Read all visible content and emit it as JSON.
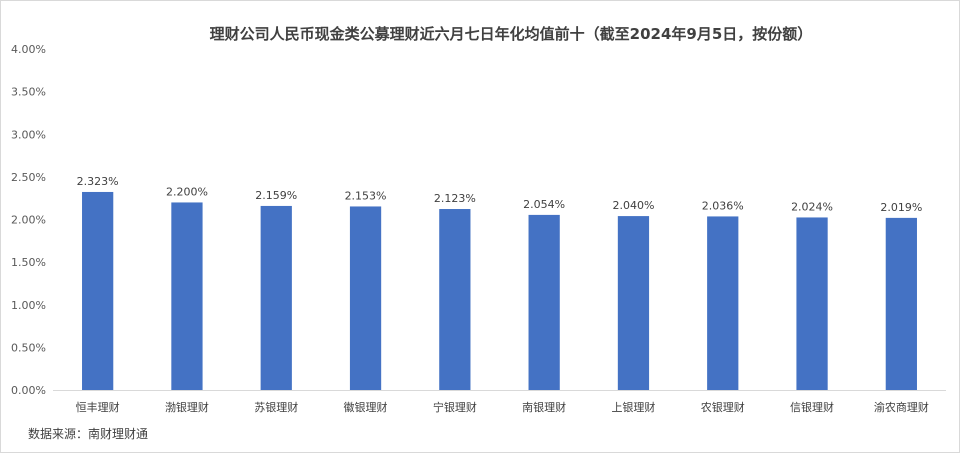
{
  "chart_data": {
    "type": "bar",
    "title": "理财公司人民币现金类公募理财近六月七日年化均值前十（截至2024年9月5日，按份额）",
    "categories": [
      "恒丰理财",
      "渤银理财",
      "苏银理财",
      "徽银理财",
      "宁银理财",
      "南银理财",
      "上银理财",
      "农银理财",
      "信银理财",
      "渝农商理财"
    ],
    "values": [
      2.323,
      2.2,
      2.159,
      2.153,
      2.123,
      2.054,
      2.04,
      2.036,
      2.024,
      2.019
    ],
    "data_labels": [
      "2.323%",
      "2.200%",
      "2.159%",
      "2.153%",
      "2.123%",
      "2.054%",
      "2.040%",
      "2.036%",
      "2.024%",
      "2.019%"
    ],
    "ylim": [
      0,
      4
    ],
    "yticks": [
      "0.00%",
      "0.50%",
      "1.00%",
      "1.50%",
      "2.00%",
      "2.50%",
      "3.00%",
      "3.50%",
      "4.00%"
    ],
    "xlabel": "",
    "ylabel": "",
    "grid": false,
    "bar_color": "#4472C4",
    "source": "数据来源：南财理财通"
  }
}
